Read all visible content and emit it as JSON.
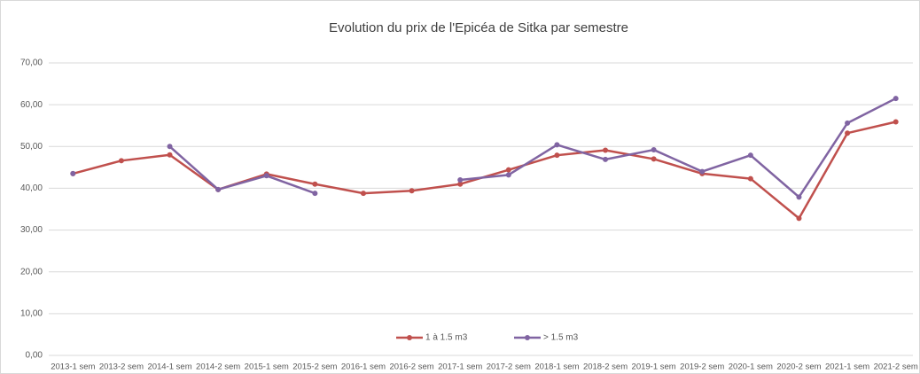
{
  "chart_data": {
    "type": "line",
    "title": "Evolution du prix de l'Epicéa de Sitka par semestre",
    "categories": [
      "2013-1 sem",
      "2013-2 sem",
      "2014-1 sem",
      "2014-2 sem",
      "2015-1 sem",
      "2015-2 sem",
      "2016-1 sem",
      "2016-2 sem",
      "2017-1 sem",
      "2017-2 sem",
      "2018-1 sem",
      "2018-2 sem",
      "2019-1 sem",
      "2019-2 sem",
      "2020-1 sem",
      "2020-2 sem",
      "2021-1 sem",
      "2021-2 sem"
    ],
    "series": [
      {
        "name": "1 à 1.5 m3",
        "color": "#c0504d",
        "values": [
          43.5,
          46.6,
          48.0,
          39.7,
          43.4,
          41.0,
          38.8,
          39.4,
          41.0,
          44.4,
          47.9,
          49.1,
          47.0,
          43.5,
          42.3,
          32.8,
          53.2,
          55.9
        ]
      },
      {
        "name": "> 1.5 m3",
        "color": "#8064a2",
        "values": [
          43.5,
          null,
          50.0,
          39.7,
          43.0,
          38.8,
          null,
          null,
          42.0,
          43.2,
          50.4,
          46.9,
          49.2,
          44.0,
          47.9,
          37.9,
          55.6,
          61.5
        ]
      }
    ],
    "ylim": [
      0,
      70
    ],
    "yticks": [
      {
        "value": 0,
        "label": "0,00"
      },
      {
        "value": 10,
        "label": "10,00"
      },
      {
        "value": 20,
        "label": "20,00"
      },
      {
        "value": 30,
        "label": "30,00"
      },
      {
        "value": 40,
        "label": "40,00"
      },
      {
        "value": 50,
        "label": "50,00"
      },
      {
        "value": 60,
        "label": "60,00"
      },
      {
        "value": 70,
        "label": "70,00"
      }
    ],
    "grid": true,
    "legend": "bottom"
  }
}
